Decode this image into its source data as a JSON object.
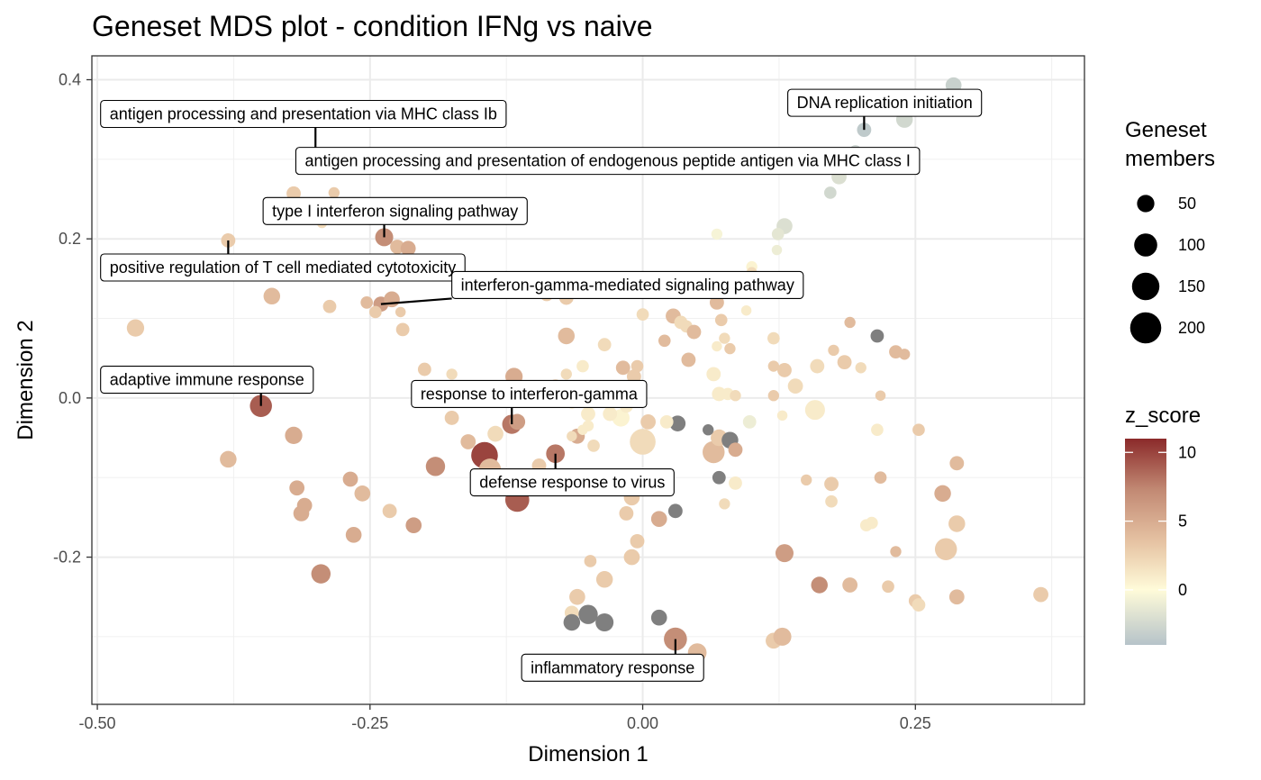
{
  "chart_data": {
    "type": "scatter",
    "title": "Geneset MDS plot - condition IFNg vs naive",
    "xlabel": "Dimension 1",
    "ylabel": "Dimension 2",
    "xlim": [
      -0.505,
      0.405
    ],
    "ylim": [
      -0.385,
      0.43
    ],
    "xticks": [
      -0.5,
      -0.25,
      0.0,
      0.25
    ],
    "xtick_labels": [
      "-0.50",
      "-0.25",
      "0.00",
      "0.25"
    ],
    "yticks": [
      -0.2,
      0.0,
      0.2,
      0.4
    ],
    "ytick_labels": [
      "-0.2",
      "0.0",
      "0.2",
      "0.4"
    ],
    "grid": true,
    "size_legend": {
      "title": [
        "Geneset",
        "members"
      ],
      "values": [
        50,
        100,
        150,
        200
      ],
      "labels": [
        "50",
        "100",
        "150",
        "200"
      ]
    },
    "color_legend": {
      "title": "z_score",
      "range": [
        -4,
        11
      ],
      "ticks": [
        0,
        5,
        10
      ],
      "tick_labels": [
        "0",
        "5",
        "10"
      ],
      "na_color": "#7f7f7f"
    },
    "points": [
      {
        "x": 0.285,
        "y": 0.393,
        "size": 40,
        "z": -3
      },
      {
        "x": 0.24,
        "y": 0.35,
        "size": 45,
        "z": -2.5
      },
      {
        "x": 0.203,
        "y": 0.337,
        "size": 30,
        "z": -3.5
      },
      {
        "x": 0.195,
        "y": 0.31,
        "size": 20,
        "z": -3
      },
      {
        "x": 0.18,
        "y": 0.278,
        "size": 35,
        "z": -2
      },
      {
        "x": 0.172,
        "y": 0.258,
        "size": 20,
        "z": -2.5
      },
      {
        "x": 0.13,
        "y": 0.216,
        "size": 40,
        "z": -2
      },
      {
        "x": 0.124,
        "y": 0.206,
        "size": 20,
        "z": -1.5
      },
      {
        "x": 0.123,
        "y": 0.186,
        "size": 12,
        "z": -1
      },
      {
        "x": 0.068,
        "y": 0.206,
        "size": 15,
        "z": -0.5
      },
      {
        "x": 0.1,
        "y": 0.165,
        "size": 15,
        "z": 0.5
      },
      {
        "x": -0.32,
        "y": 0.257,
        "size": 30,
        "z": 3
      },
      {
        "x": -0.283,
        "y": 0.258,
        "size": 15,
        "z": 3
      },
      {
        "x": -0.294,
        "y": 0.22,
        "size": 12,
        "z": 2
      },
      {
        "x": -0.38,
        "y": 0.198,
        "size": 30,
        "z": 3
      },
      {
        "x": -0.237,
        "y": 0.202,
        "size": 55,
        "z": 7
      },
      {
        "x": -0.225,
        "y": 0.19,
        "size": 30,
        "z": 4
      },
      {
        "x": -0.215,
        "y": 0.188,
        "size": 35,
        "z": 5
      },
      {
        "x": -0.34,
        "y": 0.128,
        "size": 45,
        "z": 4
      },
      {
        "x": -0.287,
        "y": 0.115,
        "size": 25,
        "z": 3
      },
      {
        "x": -0.253,
        "y": 0.12,
        "size": 20,
        "z": 4
      },
      {
        "x": -0.24,
        "y": 0.118,
        "size": 35,
        "z": 6
      },
      {
        "x": -0.23,
        "y": 0.124,
        "size": 40,
        "z": 5
      },
      {
        "x": -0.245,
        "y": 0.108,
        "size": 20,
        "z": 3
      },
      {
        "x": -0.222,
        "y": 0.108,
        "size": 12,
        "z": 3
      },
      {
        "x": -0.22,
        "y": 0.086,
        "size": 25,
        "z": 3
      },
      {
        "x": -0.465,
        "y": 0.088,
        "size": 50,
        "z": 3
      },
      {
        "x": -0.35,
        "y": -0.01,
        "size": 90,
        "z": 9
      },
      {
        "x": -0.38,
        "y": -0.077,
        "size": 45,
        "z": 4
      },
      {
        "x": -0.32,
        "y": -0.047,
        "size": 50,
        "z": 5
      },
      {
        "x": -0.317,
        "y": -0.113,
        "size": 35,
        "z": 5
      },
      {
        "x": -0.31,
        "y": -0.135,
        "size": 35,
        "z": 5
      },
      {
        "x": -0.313,
        "y": -0.145,
        "size": 40,
        "z": 5
      },
      {
        "x": -0.268,
        "y": -0.102,
        "size": 35,
        "z": 5
      },
      {
        "x": -0.257,
        "y": -0.12,
        "size": 40,
        "z": 4
      },
      {
        "x": -0.265,
        "y": -0.172,
        "size": 40,
        "z": 5
      },
      {
        "x": -0.295,
        "y": -0.221,
        "size": 65,
        "z": 7
      },
      {
        "x": -0.232,
        "y": -0.142,
        "size": 30,
        "z": 3
      },
      {
        "x": -0.21,
        "y": -0.16,
        "size": 40,
        "z": 6
      },
      {
        "x": -0.19,
        "y": -0.086,
        "size": 65,
        "z": 7
      },
      {
        "x": -0.2,
        "y": 0.036,
        "size": 25,
        "z": 3
      },
      {
        "x": -0.175,
        "y": 0.03,
        "size": 15,
        "z": 2
      },
      {
        "x": -0.175,
        "y": -0.025,
        "size": 30,
        "z": 3
      },
      {
        "x": -0.18,
        "y": 0.0,
        "size": 12,
        "z": 2
      },
      {
        "x": -0.16,
        "y": -0.055,
        "size": 35,
        "z": 4
      },
      {
        "x": -0.145,
        "y": -0.072,
        "size": 140,
        "z": 10
      },
      {
        "x": -0.14,
        "y": -0.09,
        "size": 90,
        "z": 4
      },
      {
        "x": -0.135,
        "y": -0.045,
        "size": 40,
        "z": 2
      },
      {
        "x": -0.12,
        "y": -0.033,
        "size": 65,
        "z": 8
      },
      {
        "x": -0.115,
        "y": -0.03,
        "size": 40,
        "z": 6
      },
      {
        "x": -0.115,
        "y": -0.128,
        "size": 110,
        "z": 9
      },
      {
        "x": -0.08,
        "y": -0.07,
        "size": 60,
        "z": 8
      },
      {
        "x": -0.075,
        "y": -0.1,
        "size": 40,
        "z": 5
      },
      {
        "x": -0.095,
        "y": -0.085,
        "size": 30,
        "z": 3
      },
      {
        "x": -0.118,
        "y": 0.027,
        "size": 50,
        "z": 5
      },
      {
        "x": -0.115,
        "y": 0.01,
        "size": 35,
        "z": 4
      },
      {
        "x": -0.08,
        "y": 0.015,
        "size": 25,
        "z": 3
      },
      {
        "x": -0.07,
        "y": 0.03,
        "size": 15,
        "z": 2
      },
      {
        "x": -0.065,
        "y": -0.005,
        "size": 25,
        "z": 1
      },
      {
        "x": -0.05,
        "y": -0.02,
        "size": 30,
        "z": 1
      },
      {
        "x": -0.05,
        "y": -0.035,
        "size": 15,
        "z": 1
      },
      {
        "x": -0.06,
        "y": -0.048,
        "size": 35,
        "z": 5
      },
      {
        "x": -0.065,
        "y": -0.048,
        "size": 12,
        "z": 2
      },
      {
        "x": -0.055,
        "y": -0.04,
        "size": 12,
        "z": 1
      },
      {
        "x": -0.045,
        "y": -0.06,
        "size": 20,
        "z": 2
      },
      {
        "x": -0.055,
        "y": 0.04,
        "size": 20,
        "z": 1
      },
      {
        "x": -0.035,
        "y": 0.067,
        "size": 25,
        "z": 2
      },
      {
        "x": -0.07,
        "y": 0.078,
        "size": 45,
        "z": 4
      },
      {
        "x": -0.07,
        "y": 0.126,
        "size": 30,
        "z": 3
      },
      {
        "x": -0.088,
        "y": 0.13,
        "size": 25,
        "z": 3
      },
      {
        "x": -0.02,
        "y": -0.025,
        "size": 50,
        "z": 0.5
      },
      {
        "x": -0.03,
        "y": -0.02,
        "size": 30,
        "z": 1
      },
      {
        "x": -0.015,
        "y": -0.01,
        "size": 25,
        "z": 1
      },
      {
        "x": -0.01,
        "y": 0.0,
        "size": 20,
        "z": 2
      },
      {
        "x": -0.018,
        "y": 0.038,
        "size": 30,
        "z": 4
      },
      {
        "x": -0.008,
        "y": 0.027,
        "size": 30,
        "z": 3
      },
      {
        "x": -0.005,
        "y": 0.04,
        "size": 20,
        "z": 3
      },
      {
        "x": -0.01,
        "y": 0.01,
        "size": 20,
        "z": 2
      },
      {
        "x": 0.0,
        "y": 0.105,
        "size": 20,
        "z": 2
      },
      {
        "x": 0.0,
        "y": -0.055,
        "size": 130,
        "z": 2
      },
      {
        "x": -0.01,
        "y": -0.1,
        "size": 30,
        "z": 2
      },
      {
        "x": -0.01,
        "y": -0.125,
        "size": 40,
        "z": 3
      },
      {
        "x": -0.015,
        "y": -0.145,
        "size": 30,
        "z": 3
      },
      {
        "x": -0.005,
        "y": -0.18,
        "size": 30,
        "z": 3
      },
      {
        "x": -0.01,
        "y": -0.2,
        "size": 40,
        "z": 3
      },
      {
        "x": -0.035,
        "y": -0.228,
        "size": 45,
        "z": 3
      },
      {
        "x": -0.048,
        "y": -0.205,
        "size": 20,
        "z": 3
      },
      {
        "x": -0.06,
        "y": -0.25,
        "size": 40,
        "z": 3
      },
      {
        "x": -0.065,
        "y": -0.27,
        "size": 30,
        "z": 2
      },
      {
        "x": -0.065,
        "y": -0.282,
        "size": 45,
        "z": null
      },
      {
        "x": -0.05,
        "y": -0.272,
        "size": 65,
        "z": null
      },
      {
        "x": -0.035,
        "y": -0.282,
        "size": 55,
        "z": null
      },
      {
        "x": 0.015,
        "y": -0.276,
        "size": 40,
        "z": null
      },
      {
        "x": 0.03,
        "y": -0.303,
        "size": 100,
        "z": 7
      },
      {
        "x": 0.05,
        "y": -0.32,
        "size": 60,
        "z": 4
      },
      {
        "x": 0.03,
        "y": -0.142,
        "size": 30,
        "z": null
      },
      {
        "x": 0.015,
        "y": -0.152,
        "size": 40,
        "z": 5
      },
      {
        "x": 0.032,
        "y": -0.032,
        "size": 40,
        "z": null
      },
      {
        "x": 0.005,
        "y": -0.03,
        "size": 35,
        "z": 3
      },
      {
        "x": 0.022,
        "y": -0.03,
        "size": 25,
        "z": 1
      },
      {
        "x": 0.02,
        "y": 0.072,
        "size": 20,
        "z": 4
      },
      {
        "x": 0.028,
        "y": 0.103,
        "size": 35,
        "z": 4
      },
      {
        "x": 0.035,
        "y": 0.095,
        "size": 25,
        "z": 2
      },
      {
        "x": 0.04,
        "y": 0.09,
        "size": 20,
        "z": 2
      },
      {
        "x": 0.047,
        "y": 0.083,
        "size": 30,
        "z": 4
      },
      {
        "x": 0.042,
        "y": 0.048,
        "size": 30,
        "z": 4
      },
      {
        "x": 0.068,
        "y": 0.12,
        "size": 30,
        "z": 4
      },
      {
        "x": 0.072,
        "y": 0.098,
        "size": 20,
        "z": 3
      },
      {
        "x": 0.075,
        "y": 0.075,
        "size": 15,
        "z": 2
      },
      {
        "x": 0.08,
        "y": 0.062,
        "size": 15,
        "z": 3
      },
      {
        "x": 0.068,
        "y": 0.065,
        "size": 12,
        "z": 1
      },
      {
        "x": 0.065,
        "y": 0.03,
        "size": 30,
        "z": 1
      },
      {
        "x": 0.07,
        "y": 0.005,
        "size": 30,
        "z": 1
      },
      {
        "x": 0.078,
        "y": 0.005,
        "size": 20,
        "z": 1
      },
      {
        "x": 0.085,
        "y": 0.003,
        "size": 15,
        "z": 2
      },
      {
        "x": 0.095,
        "y": 0.11,
        "size": 12,
        "z": 1
      },
      {
        "x": 0.1,
        "y": 0.158,
        "size": 12,
        "z": 2
      },
      {
        "x": 0.065,
        "y": -0.068,
        "size": 90,
        "z": 4
      },
      {
        "x": 0.07,
        "y": -0.05,
        "size": 45,
        "z": 3
      },
      {
        "x": 0.08,
        "y": -0.053,
        "size": 45,
        "z": null
      },
      {
        "x": 0.085,
        "y": -0.065,
        "size": 30,
        "z": 5
      },
      {
        "x": 0.06,
        "y": -0.04,
        "size": 15,
        "z": null
      },
      {
        "x": 0.07,
        "y": -0.1,
        "size": 25,
        "z": null
      },
      {
        "x": 0.085,
        "y": -0.107,
        "size": 25,
        "z": 1
      },
      {
        "x": 0.075,
        "y": -0.133,
        "size": 15,
        "z": 2
      },
      {
        "x": 0.098,
        "y": -0.03,
        "size": 25,
        "z": -1
      },
      {
        "x": 0.12,
        "y": 0.075,
        "size": 20,
        "z": 2
      },
      {
        "x": 0.12,
        "y": 0.04,
        "size": 15,
        "z": 3
      },
      {
        "x": 0.13,
        "y": 0.035,
        "size": 30,
        "z": 3
      },
      {
        "x": 0.12,
        "y": 0.003,
        "size": 15,
        "z": 3
      },
      {
        "x": 0.128,
        "y": -0.022,
        "size": 12,
        "z": 1
      },
      {
        "x": 0.14,
        "y": 0.015,
        "size": 35,
        "z": 2
      },
      {
        "x": 0.158,
        "y": -0.015,
        "size": 70,
        "z": 1
      },
      {
        "x": 0.16,
        "y": 0.04,
        "size": 30,
        "z": 2
      },
      {
        "x": 0.175,
        "y": 0.06,
        "size": 15,
        "z": 3
      },
      {
        "x": 0.185,
        "y": 0.045,
        "size": 30,
        "z": 3
      },
      {
        "x": 0.2,
        "y": 0.038,
        "size": 15,
        "z": 2
      },
      {
        "x": 0.19,
        "y": 0.095,
        "size": 15,
        "z": 4
      },
      {
        "x": 0.215,
        "y": 0.078,
        "size": 25,
        "z": null
      },
      {
        "x": 0.232,
        "y": 0.058,
        "size": 25,
        "z": 4
      },
      {
        "x": 0.24,
        "y": 0.055,
        "size": 15,
        "z": 4
      },
      {
        "x": 0.218,
        "y": 0.003,
        "size": 12,
        "z": 3
      },
      {
        "x": 0.215,
        "y": -0.04,
        "size": 20,
        "z": 1
      },
      {
        "x": 0.253,
        "y": -0.04,
        "size": 20,
        "z": 3
      },
      {
        "x": 0.15,
        "y": -0.103,
        "size": 15,
        "z": 3
      },
      {
        "x": 0.173,
        "y": -0.108,
        "size": 30,
        "z": 3
      },
      {
        "x": 0.173,
        "y": -0.13,
        "size": 20,
        "z": 2
      },
      {
        "x": 0.218,
        "y": -0.1,
        "size": 20,
        "z": 4
      },
      {
        "x": 0.205,
        "y": -0.16,
        "size": 20,
        "z": 1
      },
      {
        "x": 0.21,
        "y": -0.157,
        "size": 20,
        "z": 1
      },
      {
        "x": 0.232,
        "y": -0.193,
        "size": 15,
        "z": 4
      },
      {
        "x": 0.13,
        "y": -0.195,
        "size": 55,
        "z": 6
      },
      {
        "x": 0.162,
        "y": -0.235,
        "size": 45,
        "z": 7
      },
      {
        "x": 0.19,
        "y": -0.235,
        "size": 35,
        "z": 4
      },
      {
        "x": 0.225,
        "y": -0.237,
        "size": 20,
        "z": 3
      },
      {
        "x": 0.25,
        "y": -0.255,
        "size": 25,
        "z": 3
      },
      {
        "x": 0.253,
        "y": -0.26,
        "size": 25,
        "z": 2
      },
      {
        "x": 0.278,
        "y": -0.19,
        "size": 90,
        "z": 3
      },
      {
        "x": 0.288,
        "y": -0.158,
        "size": 45,
        "z": 3
      },
      {
        "x": 0.275,
        "y": -0.12,
        "size": 45,
        "z": 5
      },
      {
        "x": 0.288,
        "y": -0.082,
        "size": 30,
        "z": 4
      },
      {
        "x": 0.288,
        "y": -0.25,
        "size": 35,
        "z": 4
      },
      {
        "x": 0.365,
        "y": -0.247,
        "size": 35,
        "z": 3
      },
      {
        "x": 0.12,
        "y": -0.305,
        "size": 40,
        "z": 3
      },
      {
        "x": 0.128,
        "y": -0.3,
        "size": 55,
        "z": 4
      },
      {
        "x": -0.015,
        "y": -0.347,
        "size": 25,
        "z": 3
      }
    ],
    "annotations": [
      {
        "text": "DNA replication initiation",
        "x": 0.203,
        "y": 0.337,
        "anchor": "left",
        "box_x": 0.133,
        "box_y": 0.371
      },
      {
        "text": "antigen processing and presentation via MHC class Ib",
        "x": -0.3,
        "y": 0.305,
        "anchor": "left",
        "box_x": -0.497,
        "box_y": 0.357
      },
      {
        "text": "antigen processing and presentation of endogenous peptide antigen via MHC class I",
        "x": 0.195,
        "y": 0.31,
        "anchor": "left",
        "box_x": -0.318,
        "box_y": 0.298
      },
      {
        "text": "type I interferon signaling pathway",
        "x": -0.237,
        "y": 0.202,
        "anchor": "left",
        "box_x": -0.348,
        "box_y": 0.235
      },
      {
        "text": "positive regulation of T cell mediated cytotoxicity",
        "x": -0.38,
        "y": 0.198,
        "anchor": "left",
        "box_x": -0.497,
        "box_y": 0.164
      },
      {
        "text": "interferon-gamma-mediated signaling pathway",
        "x": -0.24,
        "y": 0.118,
        "anchor": "left",
        "box_x": -0.175,
        "box_y": 0.142
      },
      {
        "text": "adaptive immune response",
        "x": -0.35,
        "y": -0.01,
        "anchor": "left",
        "box_x": -0.497,
        "box_y": 0.023
      },
      {
        "text": "response to interferon-gamma",
        "x": -0.12,
        "y": -0.033,
        "anchor": "left",
        "box_x": -0.212,
        "box_y": 0.005
      },
      {
        "text": "defense response to virus",
        "x": -0.08,
        "y": -0.07,
        "anchor": "left",
        "box_x": -0.158,
        "box_y": -0.106
      },
      {
        "text": "inflammatory response",
        "x": 0.03,
        "y": -0.303,
        "anchor": "left",
        "box_x": -0.111,
        "box_y": -0.339
      }
    ]
  }
}
